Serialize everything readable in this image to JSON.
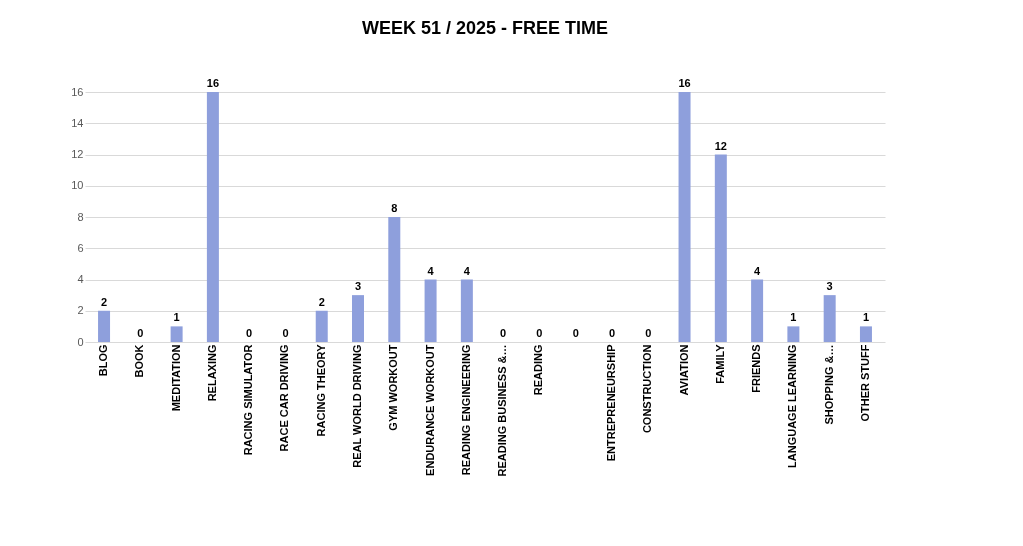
{
  "chart_data": {
    "type": "bar",
    "title": "WEEK  51 / 2025      - FREE TIME",
    "categories": [
      "BLOG",
      "BOOK",
      "MEDITATION",
      "RELAXING",
      "RACING SIMULATOR",
      "RACE CAR DRIVING",
      "RACING THEORY",
      "REAL WORLD DRIVING",
      "GYM WORKOUT",
      "ENDURANCE WORKOUT",
      "READING ENGINEERING",
      "READING BUSINESS &…",
      "READING",
      null,
      "ENTREPRENEURSHIP",
      "CONSTRUCTION",
      "AVIATION",
      "FAMILY",
      "FRIENDS",
      "LANGUAGE LEARNING",
      "SHOPPING &…",
      "OTHER STUFF"
    ],
    "values": [
      2,
      0,
      1,
      16,
      0,
      0,
      2,
      3,
      8,
      4,
      4,
      0,
      0,
      0,
      0,
      0,
      16,
      12,
      4,
      1,
      3,
      1
    ],
    "color": "#8e9fdc",
    "ylim": [
      0,
      16
    ],
    "yticks": [
      0,
      2,
      4,
      6,
      8,
      10,
      12,
      14,
      16
    ],
    "grid": "y",
    "data_labels": true
  }
}
